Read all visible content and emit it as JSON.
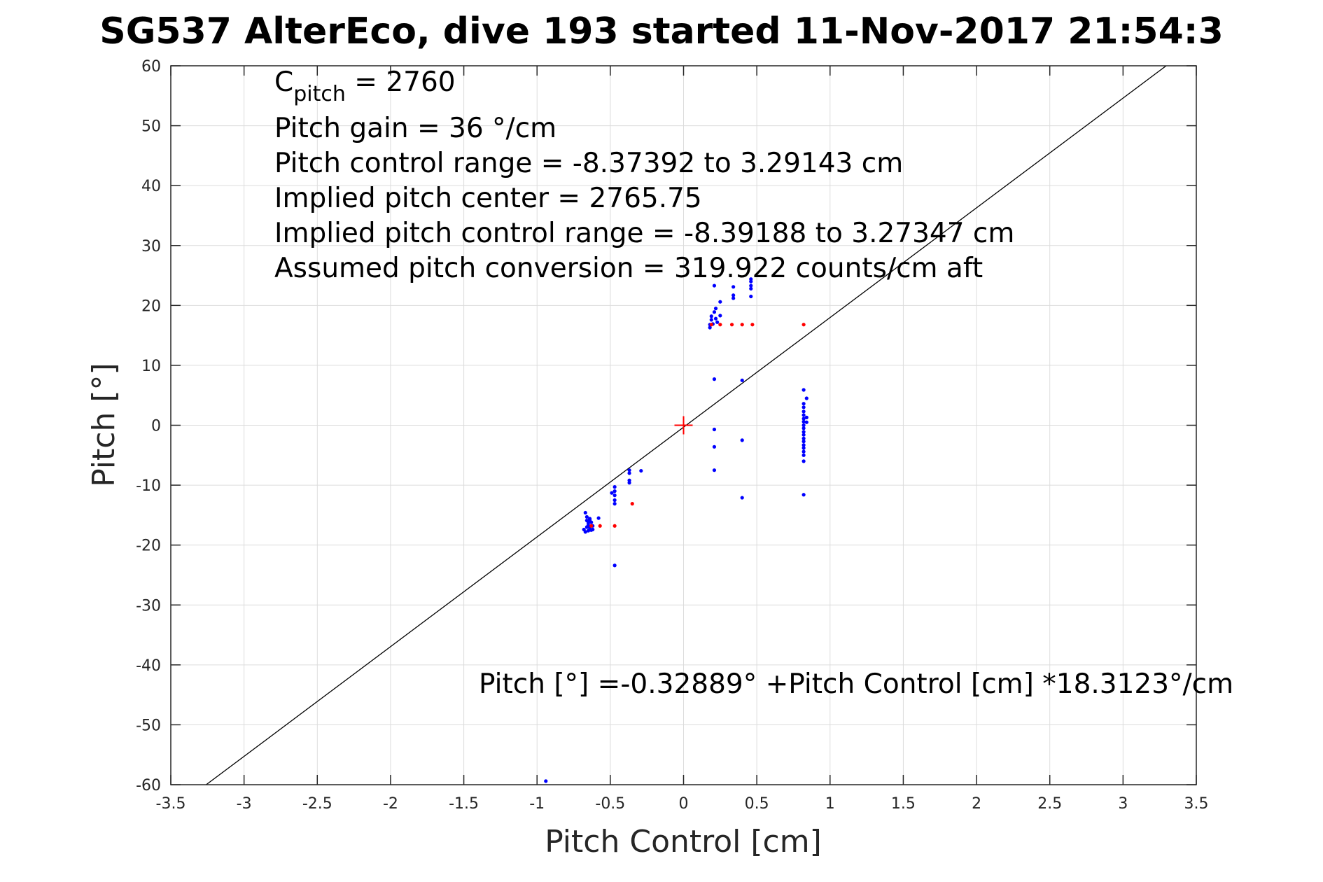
{
  "colors": {
    "background": "#ffffff",
    "axes_box": "#262626",
    "grid": "#dcdcdc",
    "fit_line": "#000000",
    "series_measured": "#0000ff",
    "series_predicted": "#ff0000",
    "center_marker": "#ff0000"
  },
  "title": "SG537 AlterEco, dive 193 started 11-Nov-2017 21:54:3",
  "annotations": {
    "c_pitch_main": "C",
    "c_pitch_sub": "pitch",
    "c_pitch_value": " = 2760",
    "pitch_gain": "Pitch gain = 36 °/cm",
    "pitch_control_range": "Pitch control range = -8.37392 to 3.29143 cm",
    "implied_pitch_center": "Implied pitch center = 2765.75",
    "implied_pitch_control_range": "Implied pitch control range = -8.39188 to 3.27347 cm",
    "assumed_pitch_conversion": "Assumed pitch conversion = 319.922 counts/cm aft",
    "fit_equation": "Pitch [°] =-0.32889° +Pitch Control [cm] *18.3123°/cm"
  },
  "chart_data": {
    "type": "scatter",
    "title": "SG537 AlterEco, dive 193 started 11-Nov-2017 21:54:3",
    "xlabel": "Pitch Control [cm]",
    "ylabel": "Pitch [°]",
    "xlim": [
      -3.5,
      3.5
    ],
    "ylim": [
      -60,
      60
    ],
    "xticks": [
      -3.5,
      -3,
      -2.5,
      -2,
      -1.5,
      -1,
      -0.5,
      0,
      0.5,
      1,
      1.5,
      2,
      2.5,
      3,
      3.5
    ],
    "yticks": [
      -60,
      -50,
      -40,
      -30,
      -20,
      -10,
      0,
      10,
      20,
      30,
      40,
      50,
      60
    ],
    "xtick_labels": [
      "-3.5",
      "-3",
      "-2.5",
      "-2",
      "-1.5",
      "-1",
      "-0.5",
      "0",
      "0.5",
      "1",
      "1.5",
      "2",
      "2.5",
      "3",
      "3.5"
    ],
    "ytick_labels": [
      "-60",
      "-50",
      "-40",
      "-30",
      "-20",
      "-10",
      "0",
      "10",
      "20",
      "30",
      "40",
      "50",
      "60"
    ],
    "grid": true,
    "fit_line": {
      "intercept": -0.32889,
      "slope": 18.3123
    },
    "center_marker": {
      "x": 0,
      "y": 0
    },
    "series": [
      {
        "color": "#0000ff",
        "points": [
          [
            -0.67,
            -14.6
          ],
          [
            -0.66,
            -15.3
          ],
          [
            -0.66,
            -15.9
          ],
          [
            -0.65,
            -16.3
          ],
          [
            -0.65,
            -16.7
          ],
          [
            -0.64,
            -17.1
          ],
          [
            -0.64,
            -15.8
          ],
          [
            -0.63,
            -16.2
          ],
          [
            -0.63,
            -17.5
          ],
          [
            -0.67,
            -17.8
          ],
          [
            -0.68,
            -17.4
          ],
          [
            -0.62,
            -16.8
          ],
          [
            -0.62,
            -17.4
          ],
          [
            -0.64,
            -15.6
          ],
          [
            -0.58,
            -15.5
          ],
          [
            -0.66,
            -17.0
          ],
          [
            -0.65,
            -17.6
          ],
          [
            -0.49,
            -11.3
          ],
          [
            -0.47,
            -10.3
          ],
          [
            -0.47,
            -11.0
          ],
          [
            -0.47,
            -11.7
          ],
          [
            -0.47,
            -12.5
          ],
          [
            -0.47,
            -13.1
          ],
          [
            -0.47,
            -23.4
          ],
          [
            -0.37,
            -7.5
          ],
          [
            -0.37,
            -8.0
          ],
          [
            -0.37,
            -9.2
          ],
          [
            -0.37,
            -9.6
          ],
          [
            -0.29,
            -7.6
          ],
          [
            0.18,
            16.3
          ],
          [
            0.18,
            16.8
          ],
          [
            0.19,
            17.6
          ],
          [
            0.19,
            18.2
          ],
          [
            0.2,
            16.9
          ],
          [
            0.21,
            18.9
          ],
          [
            0.22,
            19.5
          ],
          [
            0.22,
            17.8
          ],
          [
            0.23,
            17.2
          ],
          [
            0.25,
            20.6
          ],
          [
            0.25,
            18.3
          ],
          [
            0.21,
            23.3
          ],
          [
            0.34,
            21.2
          ],
          [
            0.34,
            21.7
          ],
          [
            0.34,
            23.1
          ],
          [
            0.46,
            21.5
          ],
          [
            0.46,
            22.8
          ],
          [
            0.46,
            23.3
          ],
          [
            0.46,
            24.0
          ],
          [
            0.46,
            24.4
          ],
          [
            0.21,
            7.7
          ],
          [
            0.21,
            -0.7
          ],
          [
            0.21,
            -3.6
          ],
          [
            0.21,
            -7.5
          ],
          [
            0.4,
            7.5
          ],
          [
            0.4,
            -2.5
          ],
          [
            0.4,
            -12.1
          ],
          [
            0.82,
            5.9
          ],
          [
            0.82,
            3.6
          ],
          [
            0.82,
            3.0
          ],
          [
            0.82,
            2.3
          ],
          [
            0.82,
            1.7
          ],
          [
            0.82,
            1.1
          ],
          [
            0.82,
            0.6
          ],
          [
            0.82,
            0.0
          ],
          [
            0.82,
            -0.5
          ],
          [
            0.82,
            -1.1
          ],
          [
            0.82,
            -1.6
          ],
          [
            0.82,
            -2.2
          ],
          [
            0.82,
            -2.7
          ],
          [
            0.82,
            -3.3
          ],
          [
            0.82,
            -3.8
          ],
          [
            0.82,
            -4.4
          ],
          [
            0.82,
            -5.0
          ],
          [
            0.82,
            -6.0
          ],
          [
            0.82,
            -11.6
          ],
          [
            0.84,
            4.5
          ],
          [
            0.84,
            1.3
          ],
          [
            0.84,
            0.5
          ],
          [
            -0.94,
            -59.4
          ]
        ]
      },
      {
        "color": "#ff0000",
        "points": [
          [
            -0.63,
            -16.8
          ],
          [
            -0.57,
            -16.8
          ],
          [
            -0.47,
            -16.8
          ],
          [
            -0.35,
            -13.1
          ],
          [
            0.19,
            16.8
          ],
          [
            0.25,
            16.8
          ],
          [
            0.33,
            16.8
          ],
          [
            0.4,
            16.8
          ],
          [
            0.47,
            16.8
          ],
          [
            0.82,
            16.8
          ]
        ]
      }
    ]
  }
}
